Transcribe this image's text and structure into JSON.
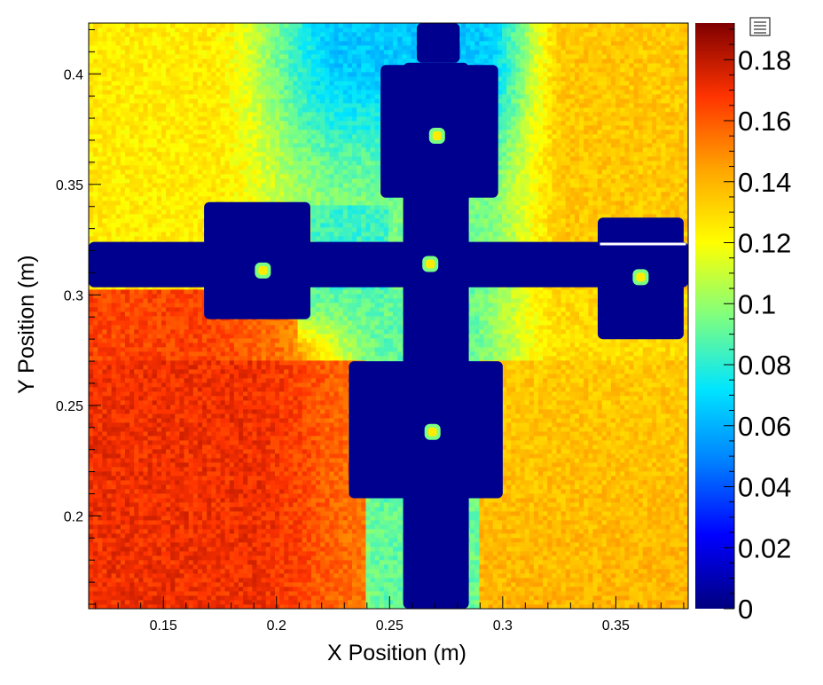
{
  "chart_data": {
    "type": "heatmap",
    "title": "",
    "xlabel": "X Position (m)",
    "ylabel": "Y Position (m)",
    "xlim": [
      0.117,
      0.382
    ],
    "ylim": [
      0.158,
      0.423
    ],
    "x_ticks": [
      0.15,
      0.2,
      0.25,
      0.3,
      0.35
    ],
    "x_tick_labels": [
      "0.15",
      "0.2",
      "0.25",
      "0.3",
      "0.35"
    ],
    "y_ticks": [
      0.2,
      0.25,
      0.3,
      0.35,
      0.4
    ],
    "y_tick_labels": [
      "0.2",
      "0.25",
      "0.3",
      "0.35",
      "0.4"
    ],
    "colorbar": {
      "range": [
        0,
        0.192
      ],
      "ticks": [
        0,
        0.02,
        0.04,
        0.06,
        0.08,
        0.1,
        0.12,
        0.14,
        0.16,
        0.18
      ],
      "tick_labels": [
        "0",
        "0.02",
        "0.04",
        "0.06",
        "0.08",
        "0.1",
        "0.12",
        "0.14",
        "0.16",
        "0.18"
      ],
      "colormap": [
        "#00007f",
        "#0000ff",
        "#007fff",
        "#00e5ff",
        "#7fff7f",
        "#ffff00",
        "#ffa500",
        "#ff3300",
        "#7f0000"
      ]
    },
    "regions": {
      "field": {
        "left_band_top": 0.135,
        "left_band_bottom": 0.165,
        "upper_left_bright": 0.125,
        "upper_center_low": 0.065,
        "right_upper": 0.135,
        "right_lower": 0.13,
        "center_mid": 0.09,
        "bottom_right": 0.14
      },
      "dark_structure": [
        {
          "name": "top-stem",
          "x": [
            0.262,
            0.281
          ],
          "y": [
            0.405,
            0.423
          ]
        },
        {
          "name": "top-block",
          "x": [
            0.246,
            0.298
          ],
          "y": [
            0.344,
            0.404
          ]
        },
        {
          "name": "left-arm",
          "x": [
            0.117,
            0.382
          ],
          "y": [
            0.3035,
            0.324
          ]
        },
        {
          "name": "left-block",
          "x": [
            0.168,
            0.215
          ],
          "y": [
            0.289,
            0.342
          ]
        },
        {
          "name": "right-block",
          "x": [
            0.342,
            0.38
          ],
          "y": [
            0.28,
            0.335
          ]
        },
        {
          "name": "vertical-stem",
          "x": [
            0.256,
            0.285
          ],
          "y": [
            0.158,
            0.405
          ]
        },
        {
          "name": "bottom-block",
          "x": [
            0.232,
            0.3
          ],
          "y": [
            0.208,
            0.27
          ]
        }
      ],
      "spots": [
        {
          "name": "top-spot",
          "x": 0.271,
          "y": 0.372
        },
        {
          "name": "left-spot",
          "x": 0.194,
          "y": 0.311
        },
        {
          "name": "center-spot",
          "x": 0.268,
          "y": 0.314
        },
        {
          "name": "right-spot",
          "x": 0.361,
          "y": 0.308
        },
        {
          "name": "bottom-spot",
          "x": 0.269,
          "y": 0.238
        }
      ],
      "white_line": {
        "x": [
          0.343,
          0.381
        ],
        "y": 0.323
      }
    }
  }
}
